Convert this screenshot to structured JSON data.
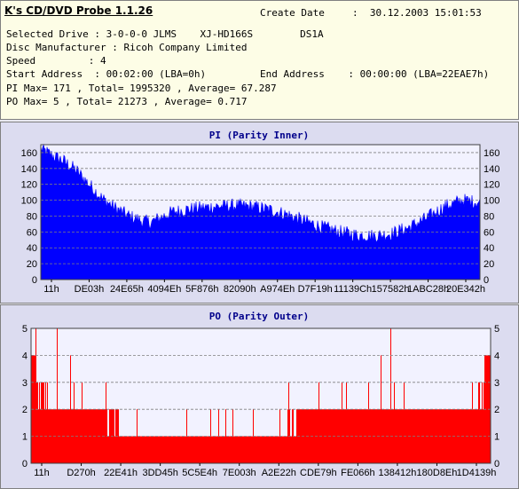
{
  "app": {
    "title": "K's CD/DVD Probe 1.1.26"
  },
  "info": {
    "create_date_label": "Create Date",
    "create_date_value": ":  30.12.2003 15:01:53",
    "selected_drive": "Selected Drive : 3-0-0-0 JLMS    XJ-HD166S        DS1A",
    "disc_manufacturer": "Disc Manufacturer : Ricoh Company Limited",
    "speed": "Speed         : 4",
    "start_address": "Start Address  : 00:02:00 (LBA=0h)",
    "end_address": "End Address    : 00:00:00 (LBA=22EAE7h)",
    "pi_summary": "PI Max= 171 , Total= 1995320 , Average= 67.287",
    "po_summary": "PO Max= 5 , Total= 21273 , Average= 0.717"
  },
  "colors": {
    "pi_fill": "#0000ff",
    "po_fill": "#ff0000",
    "plot_bg": "#f2f2ff",
    "grid": "#808080",
    "title": "#00008b"
  },
  "chart_data": [
    {
      "type": "area",
      "title": "PI (Parity Inner)",
      "ylim": [
        0,
        170
      ],
      "y_ticks": [
        0,
        20,
        40,
        60,
        80,
        100,
        120,
        140,
        160
      ],
      "grid": true,
      "x_tick_labels": [
        "11h",
        "DE03h",
        "24E65h",
        "4094Eh",
        "5F876h",
        "82090h",
        "A974Eh",
        "D7F19h",
        "11139Ch",
        "157582h",
        "1ABC28h",
        "20E342h"
      ],
      "x": [
        0,
        0.02,
        0.05,
        0.08,
        0.11,
        0.14,
        0.17,
        0.2,
        0.23,
        0.25,
        0.28,
        0.3,
        0.33,
        0.36,
        0.4,
        0.44,
        0.48,
        0.52,
        0.56,
        0.6,
        0.64,
        0.68,
        0.72,
        0.76,
        0.8,
        0.84,
        0.88,
        0.92,
        0.96,
        1.0
      ],
      "values": [
        165,
        158,
        150,
        138,
        120,
        102,
        90,
        80,
        74,
        72,
        80,
        85,
        88,
        90,
        92,
        93,
        92,
        88,
        82,
        74,
        66,
        60,
        56,
        55,
        58,
        66,
        78,
        92,
        100,
        97
      ]
    },
    {
      "type": "bar",
      "title": "PO (Parity Outer)",
      "ylim": [
        0,
        5
      ],
      "y_ticks": [
        0,
        1,
        2,
        3,
        4,
        5
      ],
      "grid": true,
      "x_tick_labels": [
        "11h",
        "D270h",
        "22E41h",
        "3DD45h",
        "5C5E4h",
        "7E003h",
        "A2E22h",
        "CDE79h",
        "FE066h",
        "138412h",
        "180D8Eh",
        "1D4139h"
      ],
      "baseline_profile": [
        3,
        2,
        2,
        2,
        1,
        1,
        1,
        1,
        1,
        1,
        1,
        1,
        2,
        2,
        2,
        2,
        2,
        2,
        2,
        2,
        3
      ],
      "spike_level_max": 5
    }
  ]
}
